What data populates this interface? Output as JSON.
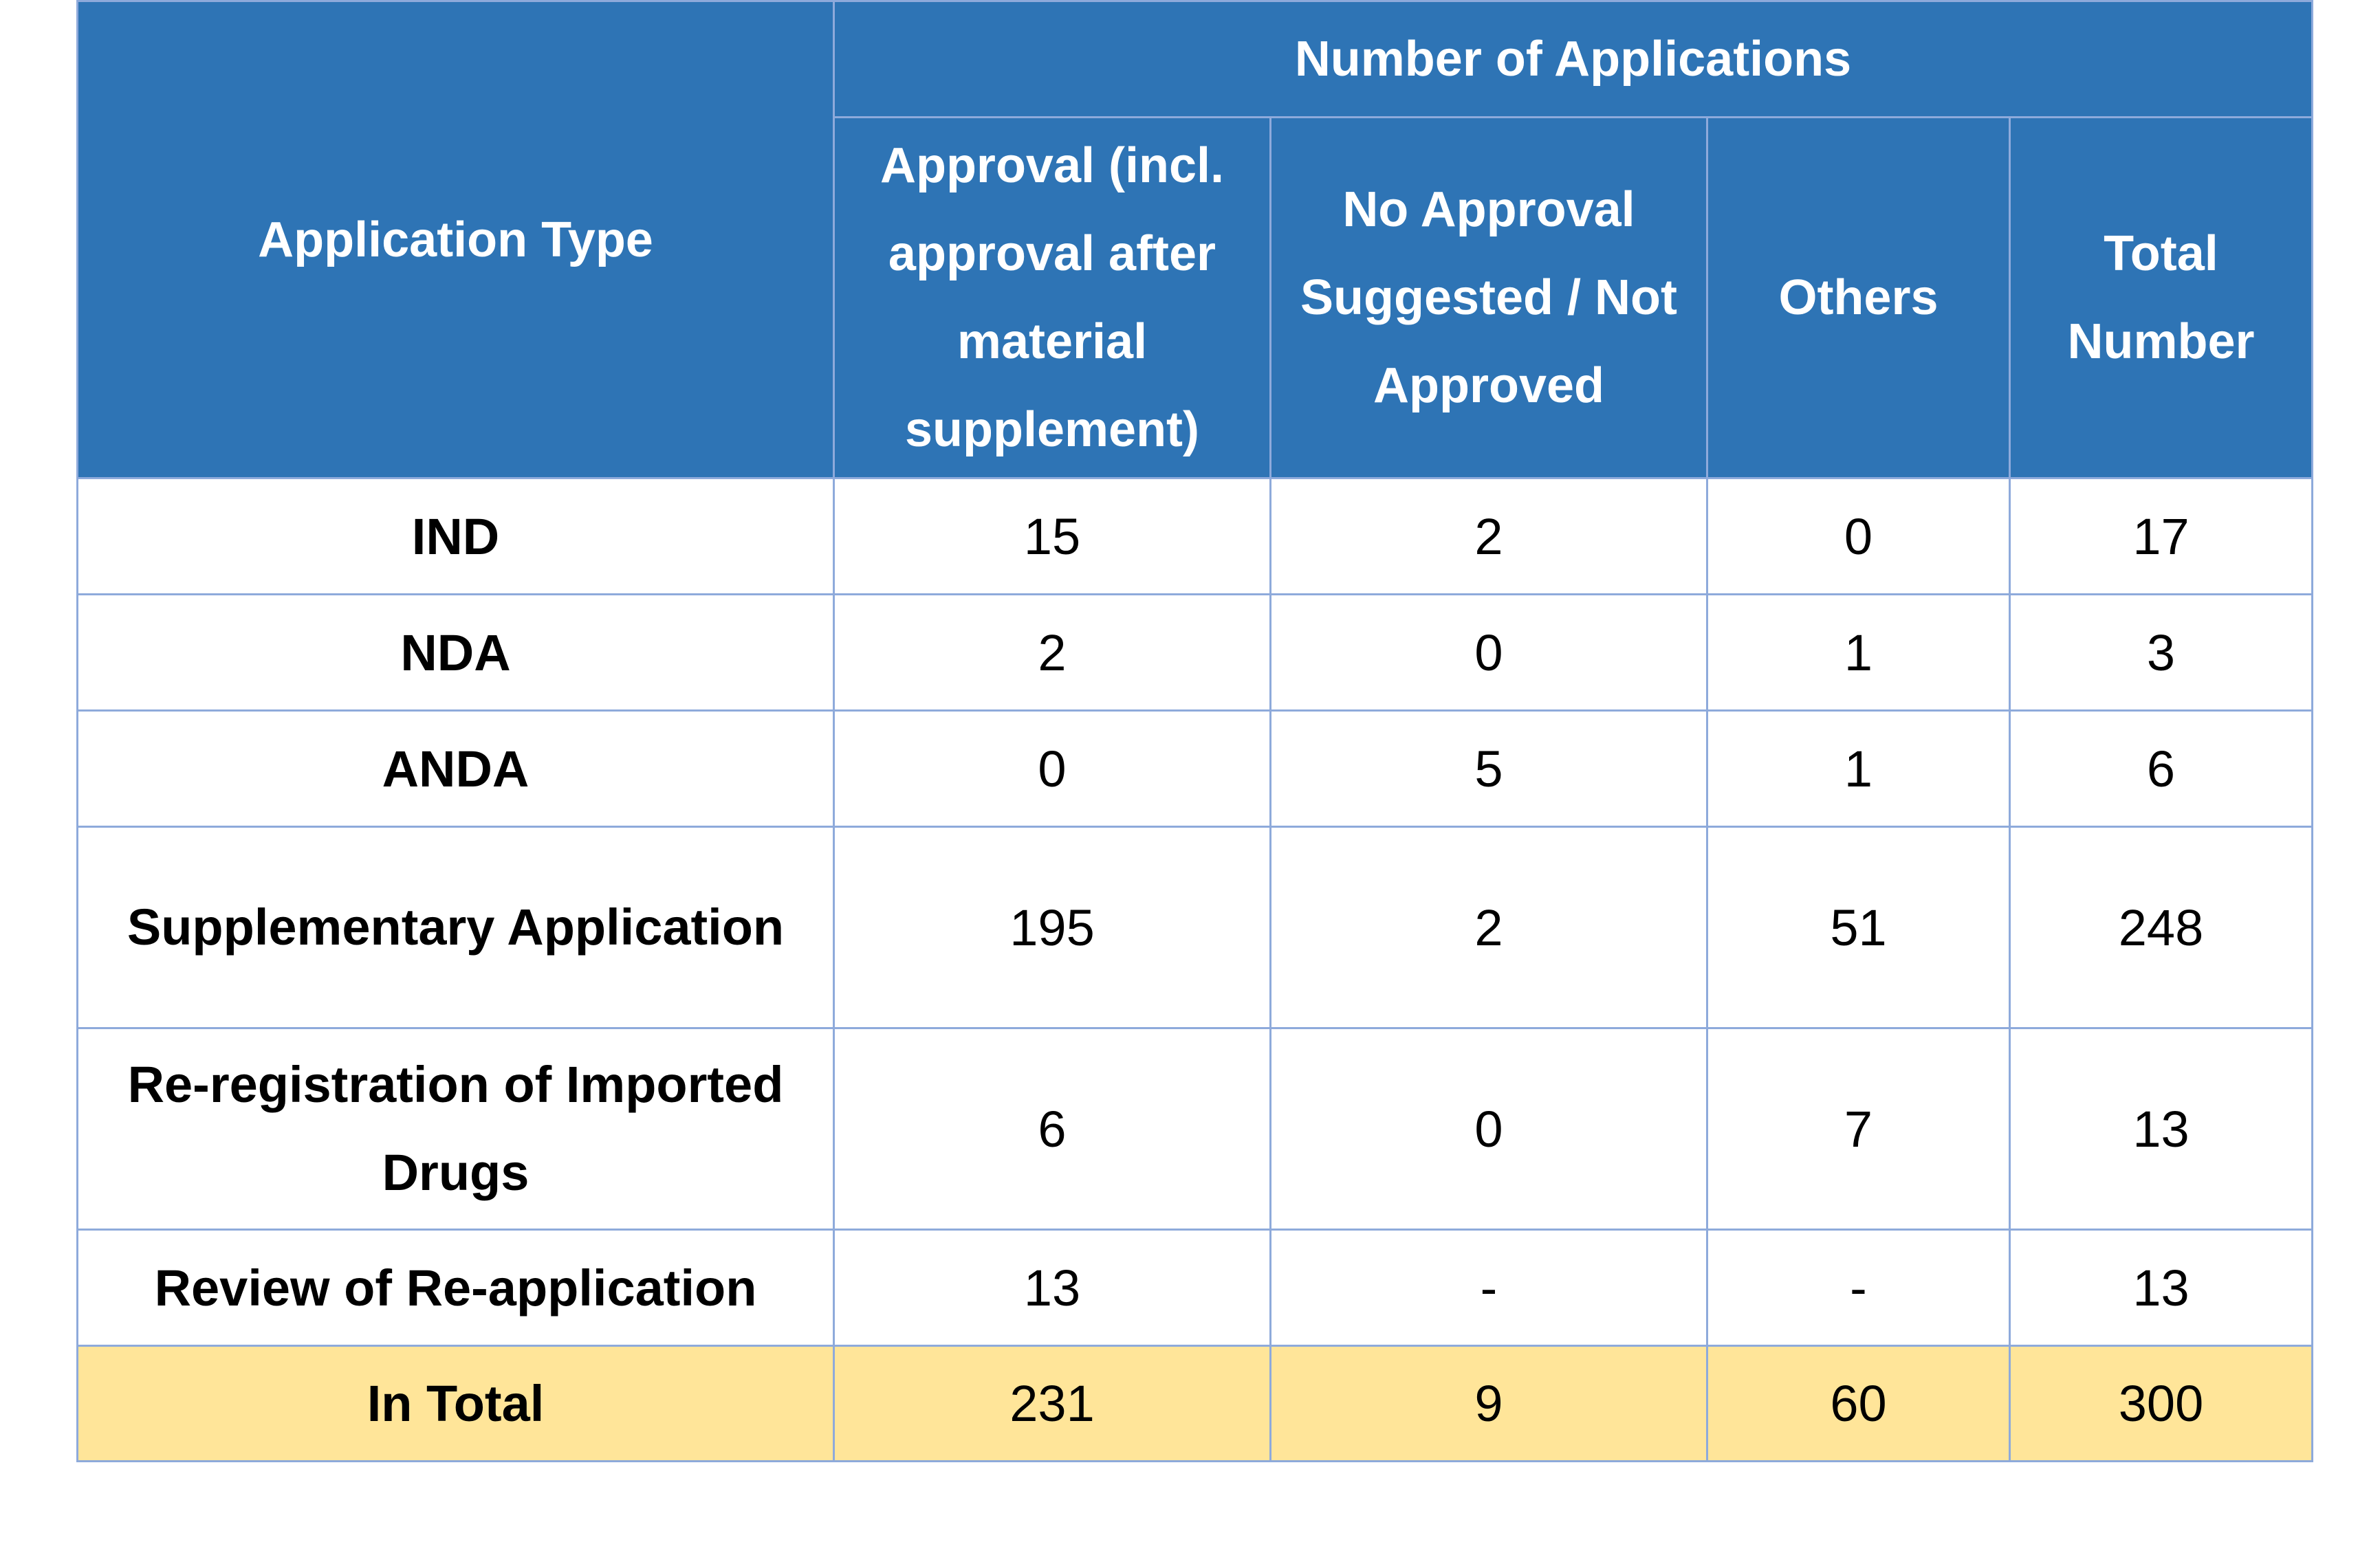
{
  "table": {
    "header": {
      "application_type": "Application Type",
      "group_label": "Number of Applications",
      "columns": [
        "Approval (incl. approval after material supplement)",
        "No Approval Suggested / Not Approved",
        "Others",
        "Total Number"
      ]
    },
    "rows": [
      {
        "type": "IND",
        "values": [
          "15",
          "2",
          "0",
          "17"
        ]
      },
      {
        "type": "NDA",
        "values": [
          "2",
          "0",
          "1",
          "3"
        ]
      },
      {
        "type": "ANDA",
        "values": [
          "0",
          "5",
          "1",
          "6"
        ]
      },
      {
        "type": "Supplementary Application",
        "values": [
          "195",
          "2",
          "51",
          "248"
        ]
      },
      {
        "type": "Re-registration of Imported Drugs",
        "values": [
          "6",
          "0",
          "7",
          "13"
        ]
      },
      {
        "type": "Review of Re-application",
        "values": [
          "13",
          "-",
          "-",
          "13"
        ]
      }
    ],
    "total": {
      "type": "In Total",
      "values": [
        "231",
        "9",
        "60",
        "300"
      ]
    }
  },
  "colors": {
    "header_bg": "#2e74b5",
    "header_text": "#ffffff",
    "border": "#8eaadb",
    "total_bg": "#ffe599"
  }
}
